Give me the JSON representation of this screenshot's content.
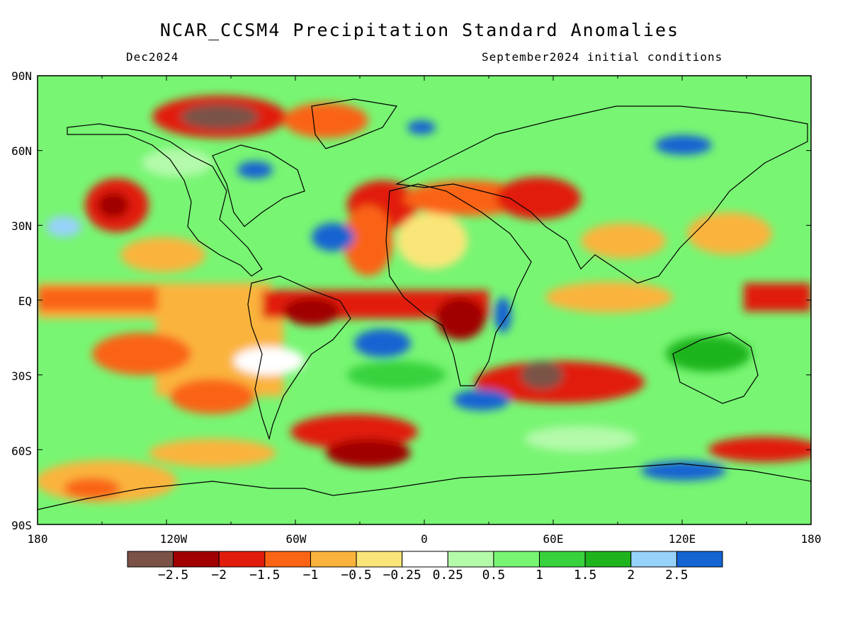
{
  "header": {
    "title": "NCAR_CCSM4 Precipitation Standard Anomalies",
    "valid_month": "Dec2024",
    "init_conditions": "September2024 initial conditions"
  },
  "axes": {
    "lat_labels": [
      "90N",
      "60N",
      "30N",
      "EQ",
      "30S",
      "60S",
      "90S"
    ],
    "lon_labels": [
      "180",
      "120W",
      "60W",
      "0",
      "60E",
      "120E",
      "180"
    ]
  },
  "colorbar": {
    "colors": [
      "#7a5246",
      "#a00000",
      "#e11c0c",
      "#fa6414",
      "#fab43c",
      "#fae678",
      "#ffffff",
      "#b4faaa",
      "#78f573",
      "#37d23c",
      "#1eb41e",
      "#96d2fa",
      "#1464d2"
    ],
    "labels": [
      "−2.5",
      "−2",
      "−1.5",
      "−1",
      "−0.5",
      "−0.25",
      "0.25",
      "0.5",
      "1",
      "1.5",
      "2",
      "2.5"
    ]
  }
}
